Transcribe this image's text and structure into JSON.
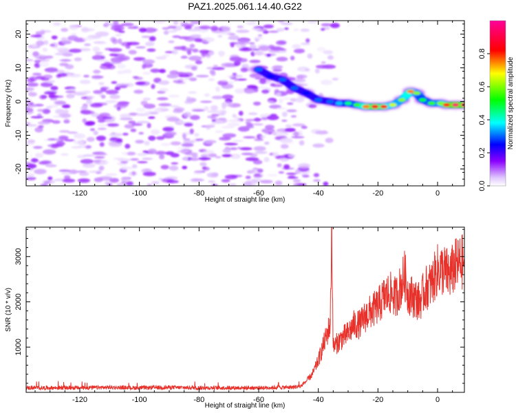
{
  "title": "PAZ1.2025.061.14.40.G22",
  "colors": {
    "snr_line": "#e8312a",
    "ridge_low": "#0000ff",
    "ridge_high": "#ff0000",
    "noise": "#7a1ef0"
  },
  "chart_data": [
    {
      "type": "heatmap",
      "xlabel": "Height of straight line (km)",
      "ylabel": "Frequency (Hz)",
      "xlim": [
        -138,
        9
      ],
      "ylim": [
        -25,
        24
      ],
      "xticks": [
        -120,
        -100,
        -80,
        -60,
        -40,
        -20,
        0
      ],
      "yticks": [
        -20,
        -10,
        0,
        10,
        20
      ],
      "colorbar": {
        "label": "Normalized spectral amplitude",
        "range": [
          0,
          1
        ],
        "ticks": [
          0.0,
          0.2,
          0.4,
          0.6,
          0.8
        ],
        "colormap": "rainbow (violet-blue-cyan-green-yellow-red-pink)"
      },
      "ridge": [
        {
          "x": -60,
          "y": 9.5,
          "z": 0.3
        },
        {
          "x": -56,
          "y": 7.5,
          "z": 0.25
        },
        {
          "x": -52,
          "y": 6.5,
          "z": 0.3
        },
        {
          "x": -48,
          "y": 4.0,
          "z": 0.3
        },
        {
          "x": -44,
          "y": 2.5,
          "z": 0.25
        },
        {
          "x": -40,
          "y": 0.5,
          "z": 0.3
        },
        {
          "x": -36,
          "y": 0.0,
          "z": 0.3
        },
        {
          "x": -33,
          "y": -0.5,
          "z": 0.35
        },
        {
          "x": -30,
          "y": -0.5,
          "z": 0.45
        },
        {
          "x": -27,
          "y": -1.0,
          "z": 0.55
        },
        {
          "x": -24,
          "y": -1.5,
          "z": 0.75
        },
        {
          "x": -21,
          "y": -1.5,
          "z": 0.85
        },
        {
          "x": -18,
          "y": -1.5,
          "z": 0.8
        },
        {
          "x": -15,
          "y": -1.0,
          "z": 0.65
        },
        {
          "x": -12,
          "y": 0.5,
          "z": 0.6
        },
        {
          "x": -9,
          "y": 3.0,
          "z": 0.75
        },
        {
          "x": -7,
          "y": 2.5,
          "z": 0.6
        },
        {
          "x": -5,
          "y": 0.5,
          "z": 0.5
        },
        {
          "x": -2,
          "y": -0.5,
          "z": 0.55
        },
        {
          "x": 1,
          "y": -0.5,
          "z": 0.6
        },
        {
          "x": 3,
          "y": -1.0,
          "z": 0.8
        },
        {
          "x": 6,
          "y": -1.0,
          "z": 0.95
        },
        {
          "x": 9,
          "y": -1.0,
          "z": 0.95
        }
      ],
      "noise_region_x": [
        -138,
        -42
      ],
      "noise_amplitude_range": [
        0.0,
        0.15
      ]
    },
    {
      "type": "line",
      "xlabel": "Height of straight line (km)",
      "ylabel": "SNR (10 * v/v)",
      "xlim": [
        -138,
        9
      ],
      "ylim": [
        0,
        3650
      ],
      "xticks": [
        -120,
        -100,
        -80,
        -60,
        -40,
        -20,
        0
      ],
      "yticks": [
        1000,
        2000,
        3000
      ],
      "series": [
        {
          "x": [
            -138,
            -130,
            -120,
            -110,
            -100,
            -90,
            -80,
            -70,
            -60,
            -50,
            -46,
            -44,
            -42,
            -40,
            -38,
            -36,
            -35.5,
            -35,
            -32,
            -30,
            -28,
            -26,
            -24,
            -22,
            -20,
            -18,
            -16,
            -14,
            -12,
            -11,
            -10,
            -8,
            -6,
            -4,
            -2,
            0,
            2,
            4,
            6,
            9
          ],
          "y": [
            100,
            100,
            100,
            110,
            100,
            110,
            100,
            100,
            100,
            110,
            130,
            250,
            400,
            700,
            1100,
            1500,
            3650,
            1000,
            1200,
            1300,
            1500,
            1500,
            1700,
            1800,
            1900,
            2100,
            2200,
            2100,
            2400,
            2600,
            2200,
            2100,
            2000,
            2300,
            2400,
            2700,
            2700,
            2600,
            2800,
            2900
          ]
        }
      ]
    }
  ]
}
